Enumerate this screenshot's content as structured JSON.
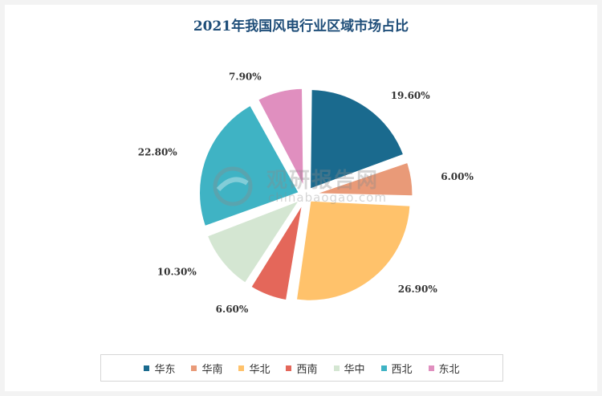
{
  "chart_data": {
    "type": "pie",
    "title": "2021年我国风电行业区域市场占比",
    "series": [
      {
        "name": "华东",
        "value": 19.6,
        "label": "19.60%",
        "color": "#1a6a8e"
      },
      {
        "name": "华南",
        "value": 6.0,
        "label": "6.00%",
        "color": "#e99a78"
      },
      {
        "name": "华北",
        "value": 26.9,
        "label": "26.90%",
        "color": "#ffc26b"
      },
      {
        "name": "西南",
        "value": 6.6,
        "label": "6.60%",
        "color": "#e4675a"
      },
      {
        "name": "华中",
        "value": 10.3,
        "label": "10.30%",
        "color": "#d4e6d2"
      },
      {
        "name": "西北",
        "value": 22.8,
        "label": "22.80%",
        "color": "#3fb3c4"
      },
      {
        "name": "东北",
        "value": 7.9,
        "label": "7.90%",
        "color": "#e08fbf"
      }
    ],
    "legend_position": "bottom"
  },
  "watermark": {
    "cn": "观研报告网",
    "en": "chinabaogao.com"
  }
}
